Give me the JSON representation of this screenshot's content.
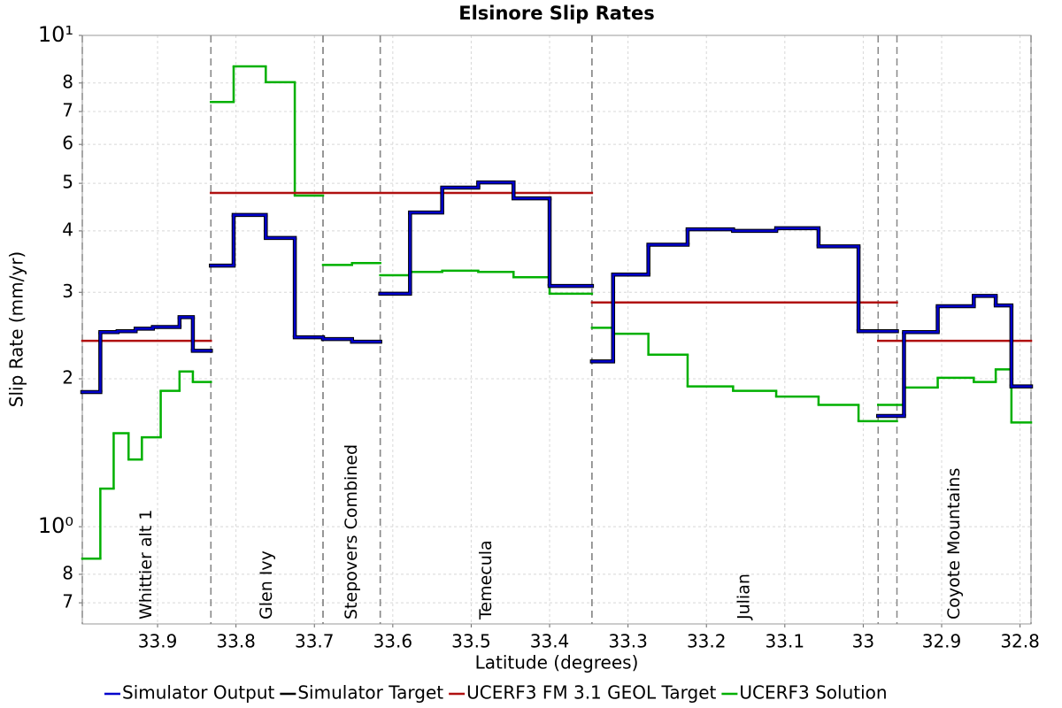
{
  "chart_data": {
    "type": "step",
    "title": "Elsinore Slip Rates",
    "xlabel": "Latitude (degrees)",
    "ylabel": "Slip Rate (mm/yr)",
    "yscale": "log",
    "grid": true,
    "xlim": [
      33.996,
      32.786
    ],
    "xticks": [
      33.9,
      33.8,
      33.7,
      33.6,
      33.5,
      33.4,
      33.3,
      33.2,
      33.1,
      33,
      32.9,
      32.8
    ],
    "ylim": [
      0.634,
      10
    ],
    "yticks": [
      {
        "value": 0.7,
        "label": "7"
      },
      {
        "value": 0.8,
        "label": "8"
      },
      {
        "value": 1,
        "label": "10⁰"
      },
      2,
      3,
      4,
      5,
      6,
      7,
      8,
      {
        "value": 10,
        "label": "10¹"
      }
    ],
    "sections": [
      {
        "name": "Whittier alt 1",
        "start": 33.996,
        "end": 33.832
      },
      {
        "name": "Glen Ivy",
        "start": 33.832,
        "end": 33.689
      },
      {
        "name": "Stepovers Combined",
        "start": 33.689,
        "end": 33.616
      },
      {
        "name": "Temecula",
        "start": 33.616,
        "end": 33.346
      },
      {
        "name": "Julian",
        "start": 33.346,
        "end": 32.957
      },
      {
        "name": "Coyote Mountains",
        "start": 32.981,
        "end": 32.786
      }
    ],
    "series": [
      {
        "name": "Simulator Output",
        "color": "#0000cc",
        "x": [
          33.996,
          33.973,
          33.951,
          33.928,
          33.906,
          33.872,
          33.855,
          33.832,
          33.832,
          33.803,
          33.762,
          33.725,
          33.689,
          33.689,
          33.652,
          33.616,
          33.616,
          33.578,
          33.537,
          33.491,
          33.446,
          33.4,
          33.346,
          33.346,
          33.319,
          33.274,
          33.224,
          33.166,
          33.111,
          33.057,
          33.006,
          32.957,
          32.981,
          32.948,
          32.905,
          32.859,
          32.831,
          32.811,
          32.786
        ],
        "values": [
          1.88,
          2.49,
          2.5,
          2.53,
          2.55,
          2.67,
          2.28,
          null,
          3.4,
          4.31,
          3.87,
          2.43,
          null,
          2.41,
          2.38,
          null,
          2.98,
          4.36,
          4.9,
          5.02,
          4.66,
          3.09,
          null,
          2.17,
          3.26,
          3.75,
          4.03,
          4.0,
          4.05,
          3.72,
          2.5,
          null,
          1.68,
          2.49,
          2.81,
          2.95,
          2.82,
          1.93,
          null
        ]
      },
      {
        "name": "Simulator Target",
        "color": "#000000",
        "x": [
          33.996,
          33.973,
          33.951,
          33.928,
          33.906,
          33.872,
          33.855,
          33.832,
          33.832,
          33.803,
          33.762,
          33.725,
          33.689,
          33.689,
          33.652,
          33.616,
          33.616,
          33.578,
          33.537,
          33.491,
          33.446,
          33.4,
          33.346,
          33.346,
          33.319,
          33.274,
          33.224,
          33.166,
          33.111,
          33.057,
          33.006,
          32.957,
          32.981,
          32.948,
          32.905,
          32.859,
          32.831,
          32.811,
          32.786
        ],
        "values": [
          1.88,
          2.49,
          2.5,
          2.53,
          2.55,
          2.67,
          2.28,
          null,
          3.4,
          4.31,
          3.87,
          2.43,
          null,
          2.41,
          2.38,
          null,
          2.98,
          4.36,
          4.9,
          5.02,
          4.66,
          3.09,
          null,
          2.17,
          3.26,
          3.75,
          4.03,
          4.0,
          4.05,
          3.72,
          2.5,
          null,
          1.68,
          2.49,
          2.81,
          2.95,
          2.82,
          1.93,
          null
        ]
      },
      {
        "name": "UCERF3 FM 3.1 GEOL Target",
        "color": "#b01010",
        "x": [
          33.996,
          33.832,
          33.832,
          33.346,
          33.346,
          32.957,
          32.981,
          32.786
        ],
        "values": [
          2.39,
          null,
          4.78,
          null,
          2.86,
          null,
          2.39,
          null
        ]
      },
      {
        "name": "UCERF3 Solution",
        "color": "#00b000",
        "x": [
          33.996,
          33.973,
          33.956,
          33.937,
          33.92,
          33.896,
          33.872,
          33.855,
          33.832,
          33.832,
          33.803,
          33.762,
          33.725,
          33.689,
          33.689,
          33.652,
          33.616,
          33.616,
          33.578,
          33.537,
          33.491,
          33.446,
          33.4,
          33.346,
          33.346,
          33.319,
          33.274,
          33.224,
          33.166,
          33.111,
          33.057,
          33.006,
          32.957,
          32.981,
          32.948,
          32.905,
          32.859,
          32.831,
          32.811,
          32.786
        ],
        "values": [
          0.861,
          1.195,
          1.55,
          1.37,
          1.52,
          1.89,
          2.07,
          1.97,
          null,
          7.32,
          8.65,
          8.03,
          4.72,
          null,
          3.41,
          3.44,
          null,
          3.25,
          3.3,
          3.32,
          3.3,
          3.22,
          2.98,
          null,
          2.54,
          2.47,
          2.24,
          1.93,
          1.89,
          1.84,
          1.77,
          1.64,
          null,
          1.77,
          1.92,
          2.01,
          1.97,
          2.09,
          1.63,
          null
        ]
      }
    ]
  }
}
